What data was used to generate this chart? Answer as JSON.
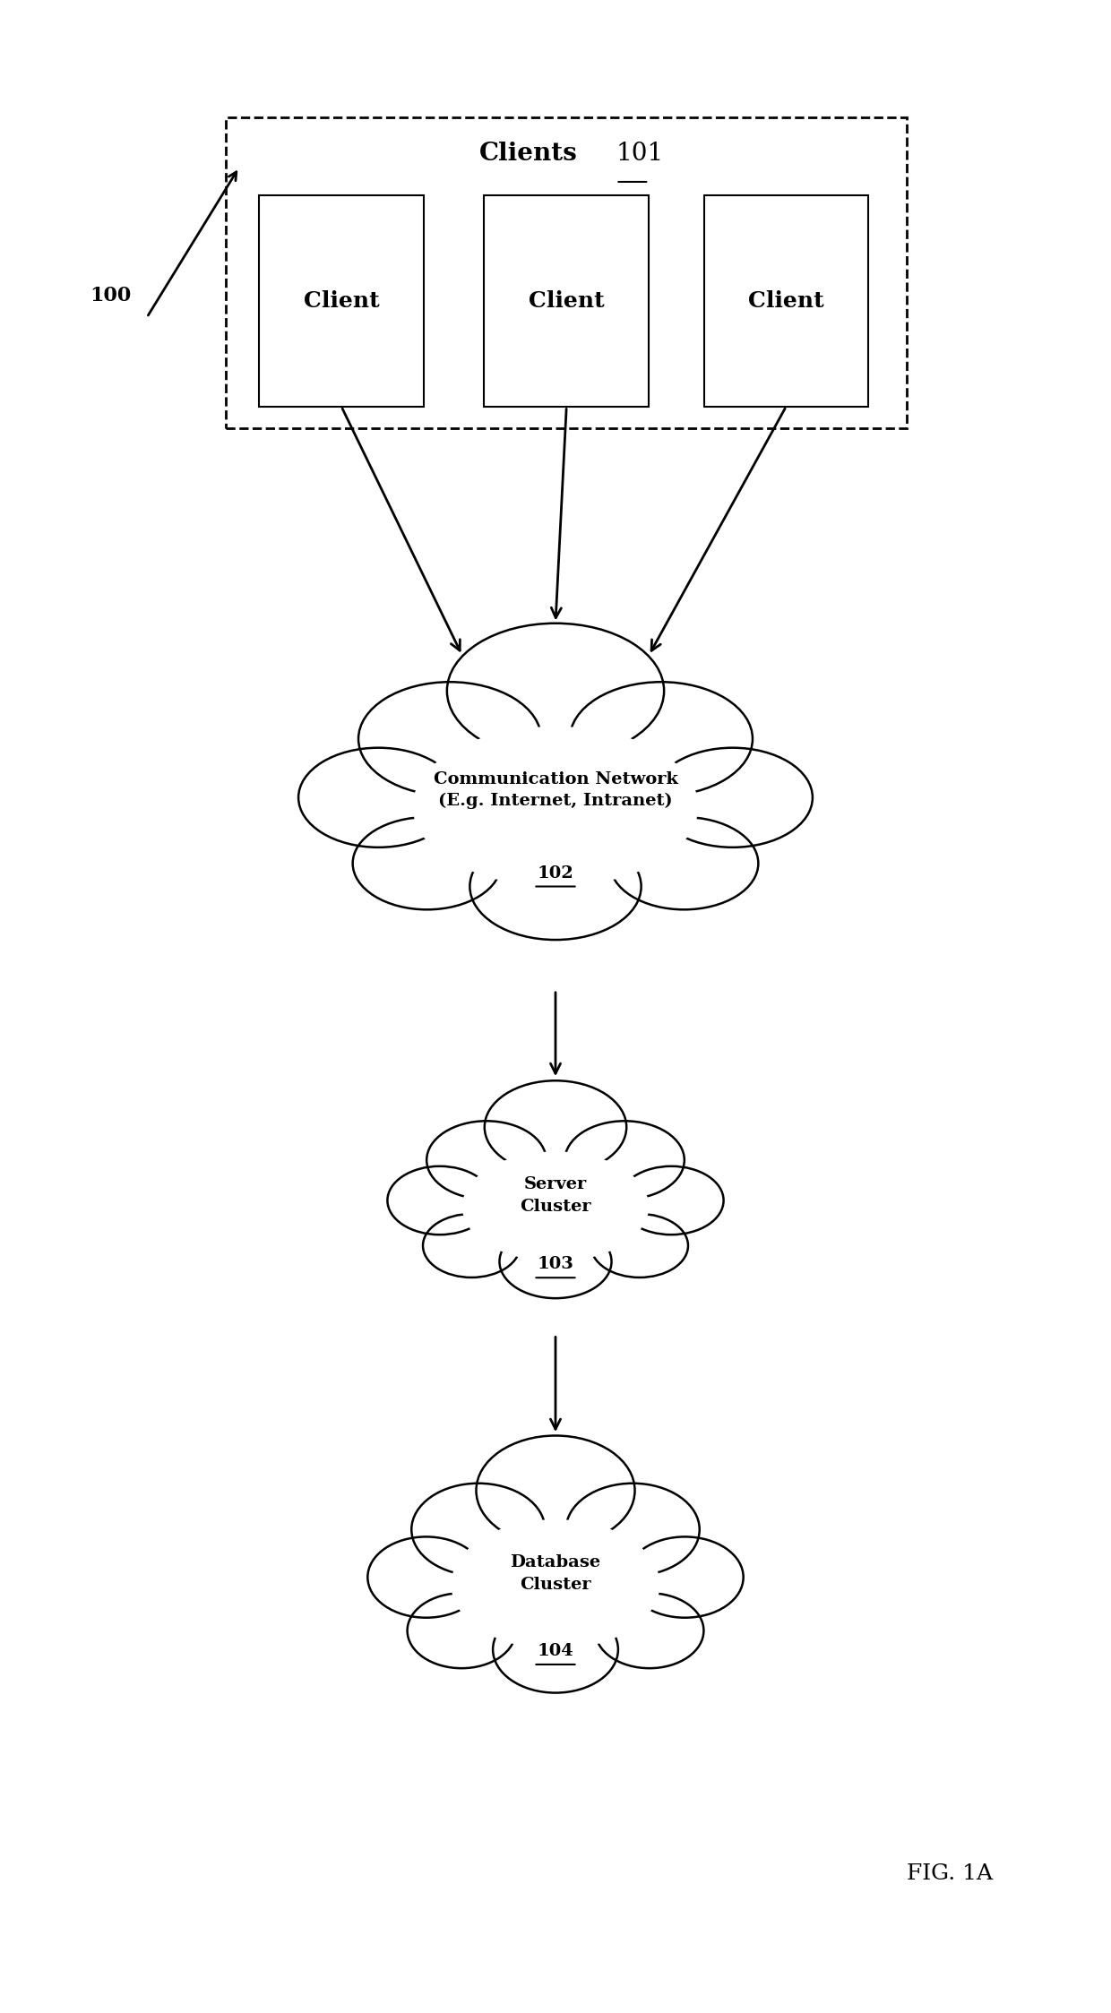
{
  "bg_color": "#ffffff",
  "fig_label": "FIG. 1A",
  "ref_label": "100",
  "clients_label": "Clients",
  "clients_num": "101",
  "client_boxes": [
    "Client",
    "Client",
    "Client"
  ],
  "cloud1_label": "Communication Network\n(E.g. Internet, Intranet)",
  "cloud1_num": "102",
  "cloud2_label": "Server\nCluster",
  "cloud2_num": "103",
  "cloud3_label": "Database\nCluster",
  "cloud3_num": "104",
  "font_size_clients": 20,
  "font_size_client": 18,
  "font_size_cloud": 14,
  "font_size_fig": 18,
  "font_size_ref": 16
}
